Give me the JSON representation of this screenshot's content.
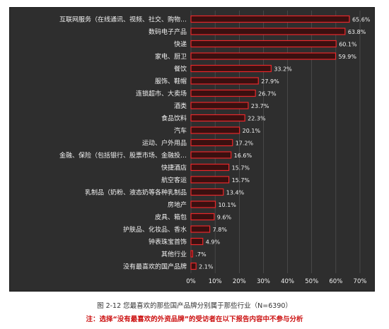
{
  "chart_data": {
    "type": "bar",
    "orientation": "horizontal",
    "categories": [
      "互联网服务（在线通讯、视频、社交、购物…",
      "数码电子产品",
      "快递",
      "家电、厨卫",
      "餐饮",
      "服饰、鞋帽",
      "连锁超市、大卖场",
      "酒类",
      "食品饮料",
      "汽车",
      "运动、户外用品",
      "金融、保险（包括银行、股票市场、金融投…",
      "快捷酒店",
      "航空客运",
      "乳制品（奶粉、液态奶等各种乳制品",
      "房地产",
      "皮具、箱包",
      "护肤品、化妆品、香水",
      "钟表珠宝首饰",
      "其他行业",
      "没有最喜欢的国产品牌"
    ],
    "values": [
      65.6,
      63.8,
      60.1,
      59.9,
      33.2,
      27.9,
      26.7,
      23.7,
      22.3,
      20.1,
      17.2,
      16.6,
      15.7,
      15.7,
      13.4,
      10.1,
      9.6,
      7.8,
      4.9,
      0.7,
      2.1
    ],
    "value_labels": [
      "65.6%",
      "63.8%",
      "60.1%",
      "59.9%",
      "33.2%",
      "27.9%",
      "26.7%",
      "23.7%",
      "22.3%",
      "20.1%",
      "17.2%",
      "16.6%",
      "15.7%",
      "15.7%",
      "13.4%",
      "10.1%",
      "9.6%",
      "7.8%",
      "4.9%",
      ".7%",
      "2.1%"
    ],
    "xlim": [
      0,
      70
    ],
    "xticks": [
      "0%",
      "10%",
      "20%",
      "30%",
      "40%",
      "50%",
      "60%",
      "70%"
    ],
    "grid": true,
    "colors": {
      "background": "#2e2e2e",
      "bar_fill": "#3a1010",
      "bar_stroke": "#e8272a",
      "text": "#f2f2f2",
      "grid": "#5a5a5a"
    }
  },
  "caption": {
    "title": "图 2-12 您最喜欢的那些国产品牌分别属于那些行业（N=6390）",
    "note": "注：选择“没有最喜欢的外资品牌”的受访者在以下报告内容中不参与分析"
  }
}
